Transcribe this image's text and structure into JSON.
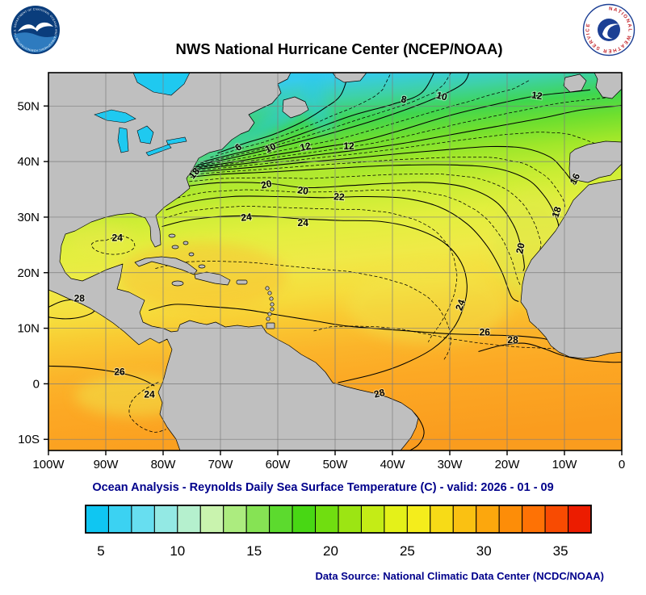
{
  "header": {
    "title": "NWS National Hurricane Center (NCEP/NOAA)",
    "noaa_logo": {
      "ring_text": "NATIONAL OCEANIC AND ATMOSPHERIC ADMINISTRATION • U.S. DEPARTMENT OF COMMERCE"
    },
    "nws_logo": {
      "ring_text": "NATIONAL WEATHER SERVICE"
    }
  },
  "footer": {
    "subtitle": "Ocean Analysis - Reynolds Daily Sea Surface Temperature (C) - valid: 2026 - 01 - 09",
    "source": "Data Source: National Climatic Data Center (NCDC/NOAA)"
  },
  "chart_data": {
    "type": "heatmap",
    "field": "Reynolds Daily Sea Surface Temperature",
    "unit": "C",
    "valid_date": "2026 - 01 - 09",
    "map_extent": {
      "lon": [
        -100,
        0
      ],
      "lat": [
        -12,
        56
      ]
    },
    "grid": true,
    "x_ticks": [
      "100W",
      "90W",
      "80W",
      "70W",
      "60W",
      "50W",
      "40W",
      "30W",
      "20W",
      "10W",
      "0"
    ],
    "x_tick_values": [
      -100,
      -90,
      -80,
      -70,
      -60,
      -50,
      -40,
      -30,
      -20,
      -10,
      0
    ],
    "y_ticks": [
      "50N",
      "40N",
      "30N",
      "20N",
      "10N",
      "0",
      "10S"
    ],
    "y_tick_values": [
      50,
      40,
      30,
      20,
      10,
      0,
      -10
    ],
    "colorbar": {
      "min": 4,
      "max": 37,
      "ticks": [
        5,
        10,
        15,
        20,
        25,
        30,
        35
      ],
      "colors": [
        "#0FC6F2",
        "#3BD2F2",
        "#67DEF0",
        "#93E9E4",
        "#B5F0CE",
        "#C9F3AE",
        "#ACEC7F",
        "#86E354",
        "#5CDA2E",
        "#48D714",
        "#70DE10",
        "#9CE513",
        "#C4EC16",
        "#E4F119",
        "#F4ED1C",
        "#F7DB17",
        "#FAC112",
        "#FCA70D",
        "#FD8D08",
        "#FE7205",
        "#F84B02",
        "#EC1C00"
      ]
    },
    "contours": [
      {
        "level": 6,
        "style": "solid",
        "points": [
          [
            -70.5,
            41.5
          ],
          [
            -66,
            43.2
          ],
          [
            -61,
            44.8
          ],
          [
            -56,
            47
          ],
          [
            -52,
            49.5
          ],
          [
            -49,
            52
          ],
          [
            -47.5,
            56.5
          ]
        ]
      },
      {
        "level": 8,
        "style": "solid",
        "points": [
          [
            -73,
            40
          ],
          [
            -68,
            41.3
          ],
          [
            -62,
            42.8
          ],
          [
            -55,
            45.3
          ],
          [
            -47,
            48.3
          ],
          [
            -40,
            50.3
          ],
          [
            -35,
            52.3
          ],
          [
            -32.5,
            56.5
          ]
        ]
      },
      {
        "level": 10,
        "style": "solid",
        "points": [
          [
            -74,
            39.4
          ],
          [
            -70,
            40.2
          ],
          [
            -64,
            41.6
          ],
          [
            -58,
            43.1
          ],
          [
            -50,
            45.3
          ],
          [
            -42,
            47.8
          ],
          [
            -34,
            50.8
          ],
          [
            -28,
            53.8
          ],
          [
            -26.5,
            56.5
          ]
        ]
      },
      {
        "level": 12,
        "style": "solid",
        "points": [
          [
            -74.5,
            39
          ],
          [
            -69,
            39.7
          ],
          [
            -60,
            41.3
          ],
          [
            -52,
            42.6
          ],
          [
            -45,
            43.8
          ],
          [
            -38,
            45.8
          ],
          [
            -30,
            48.3
          ],
          [
            -22,
            50.3
          ],
          [
            -15,
            51.8
          ],
          [
            -8,
            52.6
          ],
          [
            -5.5,
            52.9
          ]
        ]
      },
      {
        "level": 14,
        "style": "solid",
        "points": [
          [
            -74.8,
            38.6
          ],
          [
            -70,
            39.1
          ],
          [
            -62,
            40.1
          ],
          [
            -54,
            41.1
          ],
          [
            -46,
            42.1
          ],
          [
            -38,
            43.3
          ],
          [
            -30,
            44.8
          ],
          [
            -22,
            46.3
          ],
          [
            -14,
            47.8
          ],
          [
            -7,
            49.3
          ],
          [
            0.2,
            50.1
          ]
        ]
      },
      {
        "level": 16,
        "style": "solid",
        "points": [
          [
            -75.2,
            38.1
          ],
          [
            -71,
            38.4
          ],
          [
            -63,
            39.1
          ],
          [
            -55,
            39.9
          ],
          [
            -47,
            40.6
          ],
          [
            -39,
            41.4
          ],
          [
            -31,
            42.1
          ],
          [
            -23,
            42.7
          ],
          [
            -17,
            42.4
          ],
          [
            -12.5,
            40.8
          ],
          [
            -10.3,
            38.6
          ],
          [
            -9,
            36.9
          ],
          [
            -8.2,
            35.8
          ]
        ]
      },
      {
        "level": 18,
        "style": "solid",
        "points": [
          [
            -75.3,
            37.2
          ],
          [
            -70,
            37.7
          ],
          [
            -60,
            38.2
          ],
          [
            -50,
            38.8
          ],
          [
            -40,
            39.3
          ],
          [
            -30,
            39.4
          ],
          [
            -22,
            38.8
          ],
          [
            -16.5,
            36.8
          ],
          [
            -13.5,
            33.8
          ],
          [
            -11.8,
            30.8
          ],
          [
            -11,
            28.3
          ],
          [
            -11.5,
            27.3
          ]
        ]
      },
      {
        "level": 20,
        "style": "solid",
        "points": [
          [
            -75.6,
            35.6
          ],
          [
            -70,
            36.2
          ],
          [
            -62,
            36.1
          ],
          [
            -55,
            35.3
          ],
          [
            -47,
            35.7
          ],
          [
            -40,
            36.1
          ],
          [
            -33,
            36.2
          ],
          [
            -27,
            35.3
          ],
          [
            -22,
            32.8
          ],
          [
            -19,
            28.8
          ],
          [
            -17.6,
            24.8
          ],
          [
            -17,
            21.3
          ],
          [
            -17.2,
            20.3
          ]
        ]
      },
      {
        "level": 22,
        "style": "solid",
        "points": [
          [
            -79.5,
            31.3
          ],
          [
            -75.5,
            32.7
          ],
          [
            -68,
            33.7
          ],
          [
            -60,
            33.7
          ],
          [
            -52,
            33.5
          ],
          [
            -45,
            33.7
          ],
          [
            -38,
            33.4
          ],
          [
            -32,
            31.9
          ],
          [
            -27,
            28.8
          ],
          [
            -23.5,
            24.8
          ],
          [
            -21,
            20.3
          ],
          [
            -19.3,
            15.8
          ],
          [
            -18,
            14.8
          ]
        ]
      },
      {
        "level": 24,
        "style": "solid",
        "points": [
          [
            -80.2,
            28.3
          ],
          [
            -76,
            29.4
          ],
          [
            -70,
            30.1
          ],
          [
            -63,
            30.2
          ],
          [
            -56,
            29.7
          ],
          [
            -49,
            29.4
          ],
          [
            -42,
            29.2
          ],
          [
            -36,
            27.9
          ],
          [
            -31,
            25.4
          ],
          [
            -28,
            21.8
          ],
          [
            -27,
            17.8
          ],
          [
            -27.6,
            13.8
          ],
          [
            -29.5,
            9.8
          ],
          [
            -33,
            6.3
          ],
          [
            -38,
            3.6
          ],
          [
            -43,
            1.8
          ],
          [
            -49.5,
            0.2
          ]
        ]
      },
      {
        "level": 26,
        "style": "solid",
        "points": [
          [
            -82.5,
            13.2
          ],
          [
            -78,
            14.3
          ],
          [
            -72,
            13.9
          ],
          [
            -66,
            13.4
          ],
          [
            -60,
            12.4
          ],
          [
            -54,
            11.4
          ],
          [
            -48,
            10.4
          ],
          [
            -42,
            9.9
          ],
          [
            -36,
            9.4
          ],
          [
            -30,
            9
          ],
          [
            -24,
            8.8
          ],
          [
            -18,
            8.6
          ],
          [
            -14,
            8.2
          ],
          [
            -12.8,
            7.9
          ]
        ]
      },
      {
        "level": 28,
        "style": "solid",
        "points": [
          [
            -25,
            5.8
          ],
          [
            -21,
            6.9
          ],
          [
            -17,
            7.3
          ],
          [
            -13.5,
            6.3
          ],
          [
            -10,
            5
          ],
          [
            -6,
            4.2
          ],
          [
            -2,
            3.9
          ],
          [
            0.2,
            3.9
          ]
        ]
      },
      {
        "level": 26,
        "style": "solid",
        "points": [
          [
            -100,
            3.2
          ],
          [
            -95,
            3
          ],
          [
            -90,
            2.4
          ],
          [
            -86,
            1.6
          ],
          [
            -83.2,
            0.6
          ],
          [
            -81.5,
            -0.4
          ]
        ]
      },
      {
        "level": 28,
        "style": "solid",
        "points": [
          [
            -100,
            13.8
          ],
          [
            -97.5,
            14.9
          ],
          [
            -94.8,
            15.1
          ],
          [
            -92.8,
            14.2
          ],
          [
            -92,
            13.1
          ],
          [
            -94,
            12.1
          ],
          [
            -97,
            11.7
          ],
          [
            -100,
            12
          ]
        ]
      },
      {
        "level": 28,
        "style": "solid",
        "points": [
          [
            -47,
            -1
          ],
          [
            -43,
            -2.2
          ],
          [
            -39.5,
            -3.4
          ],
          [
            -36.5,
            -5
          ],
          [
            -35,
            -7
          ],
          [
            -34.5,
            -9
          ],
          [
            -35.5,
            -11
          ],
          [
            -37.5,
            -12.3
          ]
        ]
      },
      {
        "level": 24,
        "style": "dashed",
        "points": [
          [
            -80.8,
            0.3
          ],
          [
            -83.5,
            -1.2
          ],
          [
            -85.5,
            -3.2
          ],
          [
            -85.8,
            -5.7
          ],
          [
            -84,
            -7.7
          ],
          [
            -81.5,
            -8.7
          ],
          [
            -79.5,
            -8.2
          ]
        ]
      },
      {
        "level": 24,
        "style": "dashed",
        "points": [
          [
            -90,
            25.8
          ],
          [
            -87.5,
            26.6
          ],
          [
            -85.5,
            25.9
          ],
          [
            -85,
            24.6
          ],
          [
            -86.5,
            23.6
          ],
          [
            -89,
            23.3
          ],
          [
            -91.5,
            23.9
          ],
          [
            -92.5,
            25
          ],
          [
            -91.5,
            25.7
          ],
          [
            -90,
            25.8
          ]
        ]
      }
    ],
    "interpolated_dashed": [
      [
        0,
        1
      ],
      [
        1,
        2
      ],
      [
        2,
        3
      ],
      [
        3,
        4
      ],
      [
        4,
        5
      ],
      [
        5,
        6
      ],
      [
        6,
        7
      ],
      [
        7,
        8
      ],
      [
        8,
        9
      ],
      [
        9,
        10
      ],
      [
        10,
        11
      ]
    ],
    "contour_labels": [
      {
        "value": "6",
        "lon": -66.9,
        "lat": 42.6,
        "rot": -40
      },
      {
        "value": "8",
        "lon": -38,
        "lat": 51.2,
        "rot": 12
      },
      {
        "value": "10",
        "lon": -31.4,
        "lat": 51.8,
        "rot": 14
      },
      {
        "value": "10",
        "lon": -61.3,
        "lat": 42.5,
        "rot": -25
      },
      {
        "value": "12",
        "lon": -14.8,
        "lat": 51.9,
        "rot": 8
      },
      {
        "value": "12",
        "lon": -55.2,
        "lat": 42.7,
        "rot": -12
      },
      {
        "value": "12",
        "lon": -47.6,
        "lat": 42.8,
        "rot": 0
      },
      {
        "value": "16",
        "lon": -8.2,
        "lat": 36.9,
        "rot": -65
      },
      {
        "value": "18",
        "lon": -11.4,
        "lat": 30.9,
        "rot": -72
      },
      {
        "value": "18",
        "lon": -74.6,
        "lat": 37.9,
        "rot": -50
      },
      {
        "value": "20",
        "lon": -62,
        "lat": 35.9,
        "rot": -12
      },
      {
        "value": "20",
        "lon": -55.6,
        "lat": 34.8,
        "rot": 8
      },
      {
        "value": "20",
        "lon": -17.7,
        "lat": 24.4,
        "rot": -78
      },
      {
        "value": "22",
        "lon": -49.3,
        "lat": 33.7,
        "rot": 4
      },
      {
        "value": "24",
        "lon": -65.5,
        "lat": 30,
        "rot": -6
      },
      {
        "value": "24",
        "lon": -55.6,
        "lat": 29,
        "rot": 0
      },
      {
        "value": "24",
        "lon": -28.2,
        "lat": 14.2,
        "rot": -70
      },
      {
        "value": "24",
        "lon": -82.4,
        "lat": -1.9,
        "rot": 0
      },
      {
        "value": "24",
        "lon": -88,
        "lat": 26.3,
        "rot": 0
      },
      {
        "value": "26",
        "lon": -87.6,
        "lat": 2.2,
        "rot": 0
      },
      {
        "value": "26",
        "lon": -23.9,
        "lat": 9.3,
        "rot": 0
      },
      {
        "value": "28",
        "lon": -94.6,
        "lat": 15.4,
        "rot": 0
      },
      {
        "value": "28",
        "lon": -19,
        "lat": 7.9,
        "rot": 0
      },
      {
        "value": "28",
        "lon": -42.3,
        "lat": -1.7,
        "rot": -14
      }
    ]
  }
}
